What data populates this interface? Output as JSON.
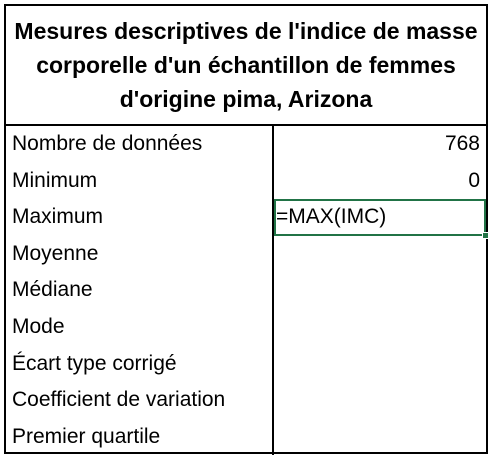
{
  "table": {
    "title": "Mesures descriptives de l'indice de masse corporelle d'un échantillon de femmes d'origine pima, Arizona",
    "rows": [
      {
        "label": "Nombre de données",
        "value": "768"
      },
      {
        "label": "Minimum",
        "value": "0"
      },
      {
        "label": "Maximum",
        "value": "=MAX(IMC)"
      },
      {
        "label": "Moyenne",
        "value": ""
      },
      {
        "label": "Médiane",
        "value": ""
      },
      {
        "label": "Mode",
        "value": ""
      },
      {
        "label": "Écart type corrigé",
        "value": ""
      },
      {
        "label": "Coefficient de variation",
        "value": ""
      },
      {
        "label": "Premier quartile",
        "value": ""
      }
    ]
  },
  "colors": {
    "selection": "#217346"
  }
}
